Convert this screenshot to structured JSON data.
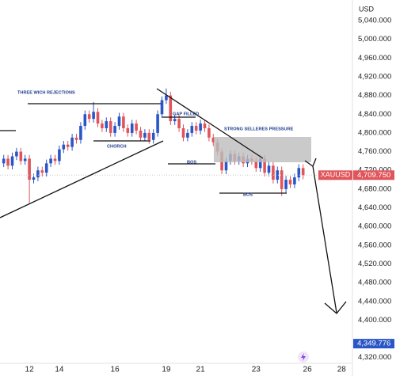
{
  "chart_data": {
    "type": "candlestick",
    "symbol": "XAUUSD",
    "y_unit": "USD",
    "up_color": "#2a56c6",
    "down_color": "#e0545a",
    "categories": [
      null,
      null,
      null,
      null,
      null,
      null,
      "12",
      null,
      null,
      null,
      null,
      null,
      null,
      "14",
      null,
      null,
      null,
      null,
      null,
      null,
      null,
      null,
      null,
      null,
      null,
      null,
      "16",
      null,
      null,
      null,
      null,
      null,
      null,
      null,
      null,
      null,
      null,
      null,
      "19",
      null,
      null,
      null,
      null,
      null,
      null,
      null,
      "21",
      null,
      null,
      null,
      null,
      null,
      null,
      null,
      null,
      null,
      null,
      null,
      null,
      "23",
      null,
      null,
      null,
      null,
      null,
      null,
      null,
      null,
      null,
      null,
      null,
      "26",
      null,
      null,
      null,
      null,
      null,
      null,
      null,
      "28",
      null,
      null
    ],
    "open": [
      4735,
      4745,
      4730,
      4750,
      4760,
      4740,
      4745,
      4700,
      4705,
      4720,
      4715,
      4735,
      4745,
      4740,
      4765,
      4775,
      4770,
      4790,
      4785,
      4815,
      4840,
      4830,
      4845,
      4820,
      4810,
      4825,
      4800,
      4815,
      4835,
      4810,
      4800,
      4820,
      4805,
      4790,
      4800,
      4785,
      4800,
      4840,
      4870,
      4880,
      4825,
      4830,
      4810,
      4790,
      4800,
      4815,
      4805,
      4820,
      4810,
      4790,
      4780,
      4760,
      4720,
      4740,
      4755,
      4740,
      4750,
      4735,
      4745,
      4740,
      4725,
      4745,
      4715,
      4730,
      4700,
      4720,
      4680,
      4700,
      4690,
      4705,
      4725,
      null,
      null,
      null,
      null,
      null,
      null,
      null,
      null,
      null,
      null,
      null
    ],
    "high": [
      4753,
      4753,
      4758,
      4768,
      4768,
      4753,
      4753,
      4713,
      4728,
      4728,
      4743,
      4753,
      4753,
      4773,
      4783,
      4783,
      4798,
      4798,
      4823,
      4848,
      4848,
      4866,
      4853,
      4828,
      4833,
      4833,
      4823,
      4843,
      4843,
      4818,
      4828,
      4828,
      4813,
      4808,
      4808,
      4808,
      4848,
      4878,
      4895,
      4888,
      4838,
      4838,
      4818,
      4808,
      4823,
      4823,
      4828,
      4828,
      4818,
      4798,
      4788,
      4768,
      4748,
      4763,
      4763,
      4758,
      4758,
      4753,
      4753,
      4748,
      4753,
      4753,
      4738,
      4738,
      4728,
      4728,
      4708,
      4708,
      4713,
      4733,
      4733,
      null,
      null,
      null,
      null,
      null,
      null,
      null,
      null,
      null,
      null,
      null
    ],
    "low": [
      4727,
      4722,
      4722,
      4742,
      4732,
      4732,
      4650,
      4692,
      4697,
      4707,
      4707,
      4727,
      4732,
      4732,
      4757,
      4762,
      4762,
      4777,
      4777,
      4807,
      4822,
      4822,
      4812,
      4802,
      4802,
      4792,
      4792,
      4807,
      4802,
      4792,
      4792,
      4797,
      4782,
      4782,
      4777,
      4777,
      4792,
      4832,
      4862,
      4817,
      4817,
      4802,
      4782,
      4782,
      4792,
      4797,
      4797,
      4802,
      4782,
      4772,
      4752,
      4712,
      4712,
      4732,
      4732,
      4732,
      4727,
      4727,
      4732,
      4717,
      4717,
      4707,
      4707,
      4692,
      4692,
      4665,
      4672,
      4682,
      4682,
      4697,
      4701,
      null,
      null,
      null,
      null,
      null,
      null,
      null,
      null,
      null,
      null,
      null
    ],
    "close": [
      4745,
      4730,
      4750,
      4760,
      4740,
      4745,
      4700,
      4705,
      4720,
      4715,
      4735,
      4745,
      4740,
      4765,
      4775,
      4770,
      4790,
      4785,
      4815,
      4840,
      4830,
      4845,
      4820,
      4810,
      4825,
      4800,
      4815,
      4835,
      4810,
      4800,
      4820,
      4805,
      4790,
      4800,
      4785,
      4800,
      4840,
      4870,
      4880,
      4825,
      4830,
      4810,
      4790,
      4800,
      4815,
      4805,
      4820,
      4810,
      4790,
      4780,
      4760,
      4720,
      4740,
      4755,
      4740,
      4750,
      4735,
      4745,
      4740,
      4725,
      4745,
      4715,
      4730,
      4700,
      4720,
      4680,
      4700,
      4690,
      4705,
      4725,
      4709.75,
      null,
      null,
      null,
      null,
      null,
      null,
      null,
      null,
      null,
      null,
      null
    ],
    "last_price_label": "4,709.750",
    "marker_price": {
      "value": 4349.776,
      "label": "4,349.776"
    },
    "ylim": [
      4306,
      5084
    ],
    "yticks": [
      {
        "value": 5040,
        "label": "5,040.000"
      },
      {
        "value": 5000,
        "label": "5,000.000"
      },
      {
        "value": 4960,
        "label": "4,960.000"
      },
      {
        "value": 4920,
        "label": "4,920.000"
      },
      {
        "value": 4880,
        "label": "4,880.000"
      },
      {
        "value": 4840,
        "label": "4,840.000"
      },
      {
        "value": 4800,
        "label": "4,800.000"
      },
      {
        "value": 4760,
        "label": "4,760.000"
      },
      {
        "value": 4720,
        "label": "4,720.000"
      },
      {
        "value": 4680,
        "label": "4,680.000"
      },
      {
        "value": 4640,
        "label": "4,640.000"
      },
      {
        "value": 4600,
        "label": "4,600.000"
      },
      {
        "value": 4560,
        "label": "4,560.000"
      },
      {
        "value": 4520,
        "label": "4,520.000"
      },
      {
        "value": 4480,
        "label": "4,480.000"
      },
      {
        "value": 4440,
        "label": "4,440.000"
      },
      {
        "value": 4400,
        "label": "4,400.000"
      },
      {
        "value": 4320,
        "label": "4,320.000"
      }
    ],
    "annotations": [
      "THREE WICH REJECTIONS",
      "CHORCH",
      "GAP FILLED",
      "STRONG SELLERES PRESSURE",
      "BOS",
      "BOS"
    ]
  }
}
